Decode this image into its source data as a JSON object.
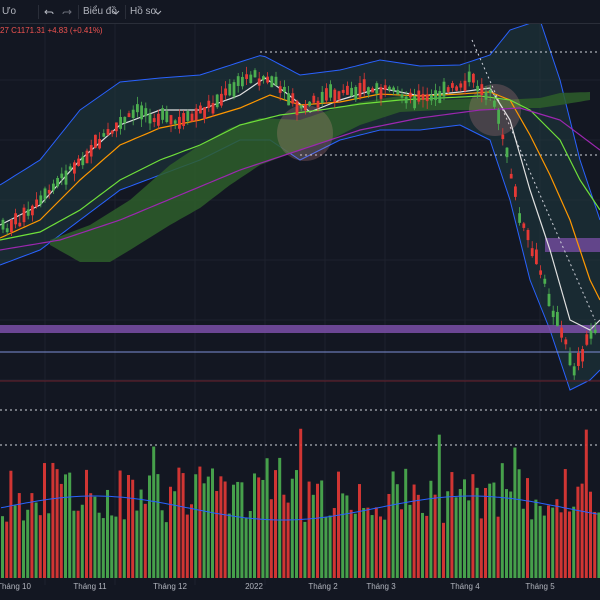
{
  "toolbar": {
    "app_label": "Ưo",
    "undo_icon": "undo-arrow-icon",
    "redo_icon": "redo-arrow-icon",
    "chart_menu": "Biểu đồ",
    "profile_menu": "Hồ sơ",
    "chevron_icon": "chevron-down-icon"
  },
  "ohlc_text": "27 C1171.31 +4.83 (+0.41%)",
  "colors": {
    "background": "#131722",
    "up": "#4caf50",
    "down": "#e53935",
    "ichimoku_cloud": "#2e5e2a",
    "bollinger_fill": "#1f3a40",
    "bollinger_line": "#2962ff",
    "purple_zone": "#7b4fa8",
    "ma_white": "#e0e0e0",
    "ma_orange": "#ff9800",
    "ma_green": "#6fe03a",
    "ma_purple": "#9c27b0"
  },
  "chart_data": {
    "type": "candlestick",
    "x_tick_labels": [
      "Tháng 10",
      "Tháng 11",
      "Tháng 12",
      "2022",
      "Tháng 2",
      "Tháng 3",
      "Tháng 4",
      "Tháng 5"
    ],
    "price_range_estimate": [
      1120,
      1540
    ],
    "volume": {
      "type": "bar",
      "description_colors": [
        "up",
        "down"
      ]
    },
    "indicators": [
      "Bollinger Bands",
      "Ichimoku Cloud",
      "Moving Averages"
    ],
    "last_change": "+4.83 (+0.41%)",
    "last_close": 1171.31
  }
}
